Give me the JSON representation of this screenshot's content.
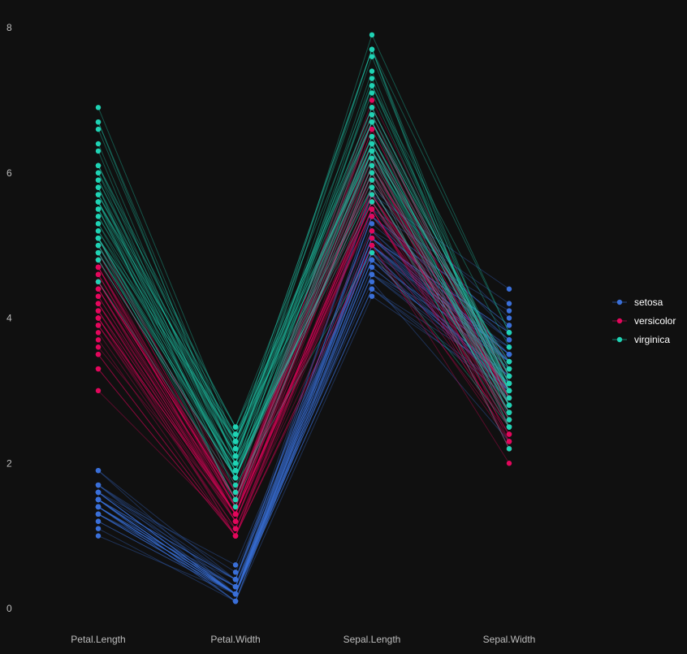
{
  "colors": {
    "background": "#101010",
    "axis_text": "#bdbdbd",
    "legend_text": "#ffffff",
    "setosa": "#3a6fd8",
    "versicolor": "#e3075c",
    "virginica": "#1fd3b4"
  },
  "chart_data": {
    "type": "parallel_coordinates",
    "title": "",
    "xlabel": "",
    "ylabel": "",
    "grid": false,
    "legend_position": "right",
    "ylim": [
      0,
      8
    ],
    "y_ticks": [
      0,
      2,
      4,
      6,
      8
    ],
    "dimensions": [
      "Petal.Length",
      "Petal.Width",
      "Sepal.Length",
      "Sepal.Width"
    ],
    "series": [
      {
        "name": "setosa",
        "color": "#3a6fd8",
        "rows": [
          [
            1.4,
            0.2,
            5.1,
            3.5
          ],
          [
            1.4,
            0.2,
            4.9,
            3.0
          ],
          [
            1.3,
            0.2,
            4.7,
            3.2
          ],
          [
            1.5,
            0.2,
            4.6,
            3.1
          ],
          [
            1.4,
            0.2,
            5.0,
            3.6
          ],
          [
            1.7,
            0.4,
            5.4,
            3.9
          ],
          [
            1.4,
            0.3,
            4.6,
            3.4
          ],
          [
            1.5,
            0.2,
            5.0,
            3.4
          ],
          [
            1.4,
            0.2,
            4.4,
            2.9
          ],
          [
            1.5,
            0.1,
            4.9,
            3.1
          ],
          [
            1.5,
            0.2,
            5.4,
            3.7
          ],
          [
            1.6,
            0.2,
            4.8,
            3.4
          ],
          [
            1.4,
            0.1,
            4.8,
            3.0
          ],
          [
            1.1,
            0.1,
            4.3,
            3.0
          ],
          [
            1.2,
            0.2,
            5.8,
            4.0
          ],
          [
            1.5,
            0.4,
            5.7,
            4.4
          ],
          [
            1.3,
            0.4,
            5.4,
            3.9
          ],
          [
            1.4,
            0.3,
            5.1,
            3.5
          ],
          [
            1.7,
            0.3,
            5.7,
            3.8
          ],
          [
            1.5,
            0.3,
            5.1,
            3.8
          ],
          [
            1.7,
            0.2,
            5.4,
            3.4
          ],
          [
            1.5,
            0.4,
            5.1,
            3.7
          ],
          [
            1.0,
            0.2,
            4.6,
            3.6
          ],
          [
            1.7,
            0.5,
            5.1,
            3.3
          ],
          [
            1.9,
            0.2,
            4.8,
            3.4
          ],
          [
            1.6,
            0.2,
            5.0,
            3.0
          ],
          [
            1.6,
            0.4,
            5.0,
            3.4
          ],
          [
            1.5,
            0.2,
            5.2,
            3.5
          ],
          [
            1.4,
            0.2,
            5.2,
            3.4
          ],
          [
            1.6,
            0.2,
            4.7,
            3.2
          ],
          [
            1.6,
            0.2,
            4.8,
            3.1
          ],
          [
            1.5,
            0.4,
            5.4,
            3.4
          ],
          [
            1.5,
            0.1,
            5.2,
            4.1
          ],
          [
            1.4,
            0.2,
            5.5,
            4.2
          ],
          [
            1.5,
            0.2,
            4.9,
            3.1
          ],
          [
            1.2,
            0.2,
            5.0,
            3.2
          ],
          [
            1.3,
            0.2,
            5.5,
            3.5
          ],
          [
            1.4,
            0.1,
            4.9,
            3.6
          ],
          [
            1.3,
            0.2,
            4.4,
            3.0
          ],
          [
            1.5,
            0.2,
            5.1,
            3.4
          ],
          [
            1.3,
            0.3,
            5.0,
            3.5
          ],
          [
            1.3,
            0.3,
            4.5,
            2.3
          ],
          [
            1.3,
            0.2,
            4.4,
            3.2
          ],
          [
            1.6,
            0.6,
            5.0,
            3.5
          ],
          [
            1.9,
            0.4,
            5.1,
            3.8
          ],
          [
            1.4,
            0.3,
            4.8,
            3.0
          ],
          [
            1.6,
            0.2,
            5.1,
            3.8
          ],
          [
            1.4,
            0.2,
            4.6,
            3.2
          ],
          [
            1.5,
            0.2,
            5.3,
            3.7
          ],
          [
            1.4,
            0.2,
            5.0,
            3.3
          ]
        ]
      },
      {
        "name": "versicolor",
        "color": "#e3075c",
        "rows": [
          [
            4.7,
            1.4,
            7.0,
            3.2
          ],
          [
            4.5,
            1.5,
            6.4,
            3.2
          ],
          [
            4.9,
            1.5,
            6.9,
            3.1
          ],
          [
            4.0,
            1.3,
            5.5,
            2.3
          ],
          [
            4.6,
            1.5,
            6.5,
            2.8
          ],
          [
            4.5,
            1.3,
            5.7,
            2.8
          ],
          [
            4.7,
            1.6,
            6.3,
            3.3
          ],
          [
            3.3,
            1.0,
            4.9,
            2.4
          ],
          [
            4.6,
            1.3,
            6.6,
            2.9
          ],
          [
            3.9,
            1.4,
            5.2,
            2.7
          ],
          [
            3.5,
            1.0,
            5.0,
            2.0
          ],
          [
            4.2,
            1.5,
            5.9,
            3.0
          ],
          [
            4.0,
            1.0,
            6.0,
            2.2
          ],
          [
            4.7,
            1.4,
            6.1,
            2.9
          ],
          [
            3.6,
            1.3,
            5.6,
            2.9
          ],
          [
            4.4,
            1.4,
            6.7,
            3.1
          ],
          [
            4.5,
            1.5,
            5.6,
            3.0
          ],
          [
            4.1,
            1.0,
            5.8,
            2.7
          ],
          [
            4.5,
            1.5,
            6.2,
            2.2
          ],
          [
            3.9,
            1.1,
            5.6,
            2.5
          ],
          [
            4.8,
            1.8,
            5.9,
            3.2
          ],
          [
            4.0,
            1.3,
            6.1,
            2.8
          ],
          [
            4.9,
            1.5,
            6.3,
            2.5
          ],
          [
            4.7,
            1.2,
            6.1,
            2.8
          ],
          [
            4.3,
            1.3,
            6.4,
            2.9
          ],
          [
            4.4,
            1.4,
            6.6,
            3.0
          ],
          [
            4.8,
            1.4,
            6.8,
            2.8
          ],
          [
            5.0,
            1.7,
            6.7,
            3.0
          ],
          [
            4.5,
            1.5,
            6.0,
            2.9
          ],
          [
            3.5,
            1.0,
            5.7,
            2.6
          ],
          [
            3.8,
            1.1,
            5.5,
            2.4
          ],
          [
            3.7,
            1.0,
            5.5,
            2.4
          ],
          [
            3.9,
            1.2,
            5.8,
            2.7
          ],
          [
            5.1,
            1.6,
            6.0,
            2.7
          ],
          [
            4.5,
            1.5,
            5.4,
            3.0
          ],
          [
            4.5,
            1.6,
            6.0,
            3.4
          ],
          [
            4.7,
            1.5,
            6.7,
            3.1
          ],
          [
            4.4,
            1.3,
            6.3,
            2.3
          ],
          [
            4.1,
            1.3,
            5.6,
            3.0
          ],
          [
            4.0,
            1.3,
            5.5,
            2.5
          ],
          [
            4.4,
            1.2,
            5.5,
            2.6
          ],
          [
            4.6,
            1.4,
            6.1,
            3.0
          ],
          [
            4.0,
            1.2,
            5.8,
            2.6
          ],
          [
            3.3,
            1.0,
            5.0,
            2.3
          ],
          [
            4.2,
            1.3,
            5.6,
            2.7
          ],
          [
            4.2,
            1.2,
            5.7,
            3.0
          ],
          [
            4.2,
            1.3,
            5.7,
            2.9
          ],
          [
            4.3,
            1.3,
            6.2,
            2.9
          ],
          [
            3.0,
            1.1,
            5.1,
            2.5
          ],
          [
            4.1,
            1.3,
            5.7,
            2.8
          ]
        ]
      },
      {
        "name": "virginica",
        "color": "#1fd3b4",
        "rows": [
          [
            6.0,
            2.5,
            6.3,
            3.3
          ],
          [
            5.1,
            1.9,
            5.8,
            2.7
          ],
          [
            5.9,
            2.1,
            7.1,
            3.0
          ],
          [
            5.6,
            1.8,
            6.3,
            2.9
          ],
          [
            5.8,
            2.2,
            6.5,
            3.0
          ],
          [
            6.6,
            2.1,
            7.6,
            3.0
          ],
          [
            4.5,
            1.7,
            4.9,
            2.5
          ],
          [
            6.3,
            1.8,
            7.3,
            2.9
          ],
          [
            5.8,
            1.8,
            6.7,
            2.5
          ],
          [
            6.1,
            2.5,
            7.2,
            3.6
          ],
          [
            5.1,
            2.0,
            6.5,
            3.2
          ],
          [
            5.3,
            1.9,
            6.4,
            2.7
          ],
          [
            5.5,
            2.1,
            6.8,
            3.0
          ],
          [
            5.0,
            2.0,
            5.7,
            2.5
          ],
          [
            5.1,
            2.4,
            5.8,
            2.8
          ],
          [
            5.3,
            2.3,
            6.4,
            3.2
          ],
          [
            5.5,
            1.8,
            6.5,
            3.0
          ],
          [
            6.7,
            2.2,
            7.7,
            3.8
          ],
          [
            6.9,
            2.3,
            7.7,
            2.6
          ],
          [
            5.0,
            1.5,
            6.0,
            2.2
          ],
          [
            5.7,
            2.3,
            6.9,
            3.2
          ],
          [
            4.9,
            2.0,
            5.6,
            2.8
          ],
          [
            6.7,
            2.0,
            7.7,
            2.8
          ],
          [
            4.9,
            1.8,
            6.3,
            2.7
          ],
          [
            5.7,
            2.1,
            6.7,
            3.3
          ],
          [
            6.0,
            1.8,
            7.2,
            3.2
          ],
          [
            4.8,
            1.8,
            6.2,
            2.8
          ],
          [
            4.9,
            1.8,
            6.1,
            3.0
          ],
          [
            5.6,
            2.1,
            6.4,
            2.8
          ],
          [
            5.8,
            1.6,
            7.2,
            3.0
          ],
          [
            6.1,
            1.9,
            7.4,
            2.8
          ],
          [
            6.4,
            2.0,
            7.9,
            3.8
          ],
          [
            5.6,
            2.2,
            6.4,
            2.8
          ],
          [
            5.1,
            1.5,
            6.3,
            2.8
          ],
          [
            5.6,
            1.4,
            6.1,
            2.6
          ],
          [
            6.1,
            2.3,
            7.7,
            3.0
          ],
          [
            5.6,
            2.4,
            6.3,
            3.4
          ],
          [
            5.5,
            1.8,
            6.4,
            3.1
          ],
          [
            4.8,
            1.8,
            6.0,
            3.0
          ],
          [
            5.4,
            2.1,
            6.9,
            3.1
          ],
          [
            5.6,
            2.4,
            6.7,
            3.1
          ],
          [
            5.1,
            2.3,
            6.9,
            3.1
          ],
          [
            5.1,
            1.9,
            5.8,
            2.7
          ],
          [
            5.9,
            2.3,
            6.8,
            3.2
          ],
          [
            5.7,
            2.5,
            6.7,
            3.3
          ],
          [
            5.2,
            2.3,
            6.7,
            3.0
          ],
          [
            5.0,
            1.9,
            6.3,
            2.5
          ],
          [
            5.2,
            2.0,
            6.5,
            3.0
          ],
          [
            5.4,
            2.3,
            6.2,
            3.4
          ],
          [
            5.1,
            1.8,
            5.9,
            3.0
          ]
        ]
      }
    ]
  }
}
